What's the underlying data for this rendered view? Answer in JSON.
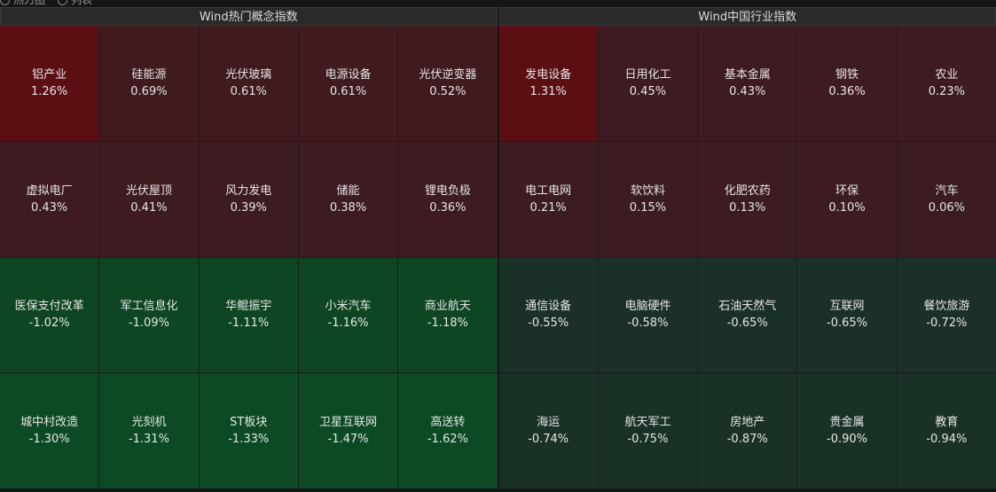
{
  "view_tabs": [
    "热力图",
    "列表"
  ],
  "panels": [
    {
      "title": "Wind热门概念指数",
      "tiles": [
        {
          "name": "铝产业",
          "change": "1.26%",
          "color": "#5c0f13"
        },
        {
          "name": "硅能源",
          "change": "0.69%",
          "color": "#3f1a1f"
        },
        {
          "name": "光伏玻璃",
          "change": "0.61%",
          "color": "#3f1a1f"
        },
        {
          "name": "电源设备",
          "change": "0.61%",
          "color": "#3f1a1f"
        },
        {
          "name": "光伏逆变器",
          "change": "0.52%",
          "color": "#3f1a1f"
        },
        {
          "name": "虚拟电厂",
          "change": "0.43%",
          "color": "#3e1b20"
        },
        {
          "name": "光伏屋顶",
          "change": "0.41%",
          "color": "#3e1b20"
        },
        {
          "name": "风力发电",
          "change": "0.39%",
          "color": "#3e1b20"
        },
        {
          "name": "储能",
          "change": "0.38%",
          "color": "#3e1b20"
        },
        {
          "name": "锂电负极",
          "change": "0.36%",
          "color": "#3e1b20"
        },
        {
          "name": "医保支付改革",
          "change": "-1.02%",
          "color": "#0e4623"
        },
        {
          "name": "军工信息化",
          "change": "-1.09%",
          "color": "#0e4623"
        },
        {
          "name": "华鲲振宇",
          "change": "-1.11%",
          "color": "#0e4623"
        },
        {
          "name": "小米汽车",
          "change": "-1.16%",
          "color": "#0e4623"
        },
        {
          "name": "商业航天",
          "change": "-1.18%",
          "color": "#0e4623"
        },
        {
          "name": "城中村改造",
          "change": "-1.30%",
          "color": "#0c4a23"
        },
        {
          "name": "光刻机",
          "change": "-1.31%",
          "color": "#0c4a23"
        },
        {
          "name": "ST板块",
          "change": "-1.33%",
          "color": "#0c4a23"
        },
        {
          "name": "卫星互联网",
          "change": "-1.47%",
          "color": "#0c4a23"
        },
        {
          "name": "高送转",
          "change": "-1.62%",
          "color": "#0c4a23"
        }
      ]
    },
    {
      "title": "Wind中国行业指数",
      "tiles": [
        {
          "name": "发电设备",
          "change": "1.31%",
          "color": "#5c0f13"
        },
        {
          "name": "日用化工",
          "change": "0.45%",
          "color": "#3e1b20"
        },
        {
          "name": "基本金属",
          "change": "0.43%",
          "color": "#3e1b20"
        },
        {
          "name": "钢铁",
          "change": "0.36%",
          "color": "#3e1b20"
        },
        {
          "name": "农业",
          "change": "0.23%",
          "color": "#3e1b20"
        },
        {
          "name": "电工电网",
          "change": "0.21%",
          "color": "#3c1c21"
        },
        {
          "name": "软饮料",
          "change": "0.15%",
          "color": "#3c1c21"
        },
        {
          "name": "化肥农药",
          "change": "0.13%",
          "color": "#3c1c21"
        },
        {
          "name": "环保",
          "change": "0.10%",
          "color": "#3c1c21"
        },
        {
          "name": "汽车",
          "change": "0.06%",
          "color": "#3c1c21"
        },
        {
          "name": "通信设备",
          "change": "-0.55%",
          "color": "#1b3127"
        },
        {
          "name": "电脑硬件",
          "change": "-0.58%",
          "color": "#1b3127"
        },
        {
          "name": "石油天然气",
          "change": "-0.65%",
          "color": "#1b3127"
        },
        {
          "name": "互联网",
          "change": "-0.65%",
          "color": "#1b3127"
        },
        {
          "name": "餐饮旅游",
          "change": "-0.72%",
          "color": "#1b3127"
        },
        {
          "name": "海运",
          "change": "-0.74%",
          "color": "#1a3226"
        },
        {
          "name": "航天军工",
          "change": "-0.75%",
          "color": "#1a3226"
        },
        {
          "name": "房地产",
          "change": "-0.87%",
          "color": "#1a3226"
        },
        {
          "name": "贵金属",
          "change": "-0.90%",
          "color": "#1a3226"
        },
        {
          "name": "教育",
          "change": "-0.94%",
          "color": "#1a3226"
        }
      ]
    }
  ]
}
